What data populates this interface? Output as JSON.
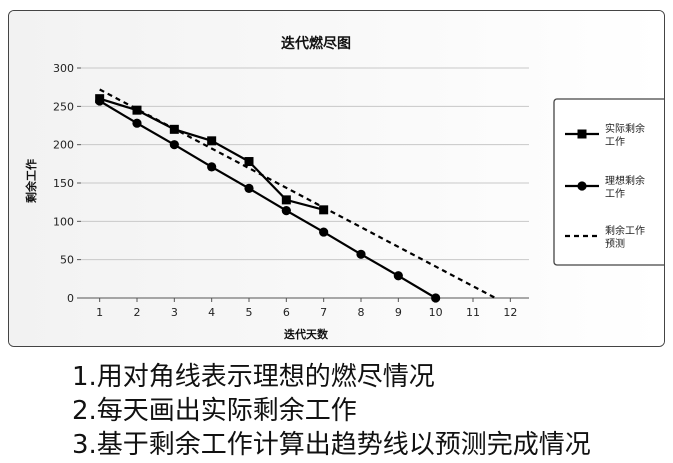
{
  "chart_data": {
    "type": "line",
    "title": "迭代燃尽图",
    "xlabel": "迭代天数",
    "ylabel": "剩余工作",
    "xlim": [
      0.5,
      12.5
    ],
    "ylim": [
      0,
      300
    ],
    "xticks": [
      1,
      2,
      3,
      4,
      5,
      6,
      7,
      8,
      9,
      10,
      11,
      12
    ],
    "yticks": [
      0,
      50,
      100,
      150,
      200,
      250,
      300
    ],
    "grid": true,
    "legend_position": "right",
    "series": [
      {
        "name": "实际剩余工作",
        "style": "solid-square",
        "color": "#000000",
        "x": [
          1,
          2,
          3,
          4,
          5,
          6,
          7
        ],
        "y": [
          260,
          245,
          220,
          205,
          178,
          128,
          115
        ]
      },
      {
        "name": "理想剩余工作",
        "style": "solid-circle",
        "color": "#000000",
        "x": [
          1,
          2,
          3,
          4,
          5,
          6,
          7,
          8,
          9,
          10
        ],
        "y": [
          257,
          228,
          200,
          171,
          143,
          114,
          86,
          57,
          29,
          0
        ]
      },
      {
        "name": "剩余工作预测",
        "style": "dashed",
        "color": "#000000",
        "x": [
          1,
          11.6
        ],
        "y": [
          272,
          0
        ]
      }
    ]
  },
  "notes": [
    "1.用对角线表示理想的燃尽情况",
    "2.每天画出实际剩余工作",
    "3.基于剩余工作计算出趋势线以预测完成情况"
  ]
}
